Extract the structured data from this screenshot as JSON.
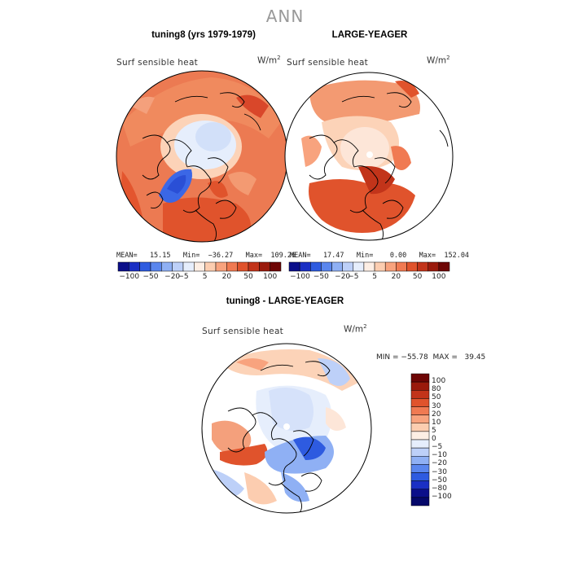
{
  "title": "ANN",
  "panels": [
    {
      "title": "tuning8 (yrs 1979-1979)",
      "variable": "Surf sensible heat",
      "units_base": "W/m",
      "units_exp": "2",
      "stats": "MEAN=   15.15   Min=  −36.27   Max=  109.26",
      "mean": 15.15,
      "min": -36.27,
      "max": 109.26
    },
    {
      "title": "LARGE-YEAGER",
      "variable": "Surf sensible heat",
      "units_base": "W/m",
      "units_exp": "2",
      "stats": "MEAN=   17.47   Min=    0.00   Max=  152.04",
      "mean": 17.47,
      "min": 0.0,
      "max": 152.04
    },
    {
      "title": "tuning8 - LARGE-YEAGER",
      "variable": "Surf sensible heat",
      "units_base": "W/m",
      "units_exp": "2",
      "stats": "MIN = −55.78  MAX =   39.45",
      "min": -55.78,
      "max": 39.45
    }
  ],
  "colorbar_top": {
    "tick_labels": [
      "−100",
      "−50",
      "−20",
      "−5",
      "5",
      "20",
      "50",
      "100"
    ],
    "colors": [
      "#0b0f8a",
      "#1a2fc4",
      "#2e5be0",
      "#5a86ee",
      "#8fb0f4",
      "#bdd0f8",
      "#e6eefc",
      "#fdeee4",
      "#fccdb0",
      "#f8a37e",
      "#f07a52",
      "#e0532c",
      "#c2341a",
      "#9a1a0c",
      "#6e0605"
    ]
  },
  "colorbar_diff": {
    "tick_labels": [
      "100",
      "80",
      "50",
      "30",
      "20",
      "10",
      "5",
      "0",
      "−5",
      "−10",
      "−20",
      "−30",
      "−50",
      "−80",
      "−100"
    ],
    "colors": [
      "#6e0605",
      "#9a1a0c",
      "#c2341a",
      "#e0532c",
      "#f07a52",
      "#f8a37e",
      "#fccdb0",
      "#fdeee4",
      "#e6eefc",
      "#bdd0f8",
      "#8fb0f4",
      "#5a86ee",
      "#2e5be0",
      "#1a2fc4",
      "#0b0f8a",
      "#05086a"
    ]
  }
}
